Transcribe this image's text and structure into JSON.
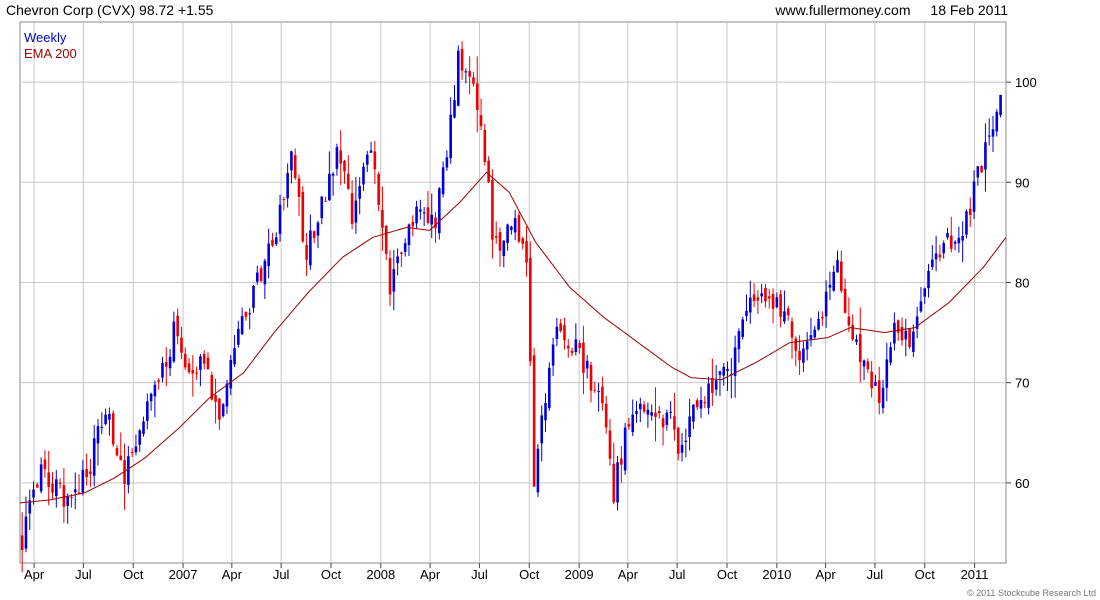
{
  "header": {
    "title": "Chevron Corp (CVX) 98.72 +1.55",
    "site": "www.fullermoney.com",
    "date": "18 Feb 2011"
  },
  "copyright": "© 2011 Stockcube Research Ltd",
  "colors": {
    "up": "#0000dd",
    "down": "#ee0000",
    "ema": "#990000",
    "grid": "#c8c8c8",
    "legend_weekly": "#0000cc",
    "legend_ema": "#990000"
  },
  "chart_data": {
    "type": "candlestick",
    "legend": [
      "Weekly",
      "EMA 200"
    ],
    "ylim": [
      52,
      106
    ],
    "y_ticks": [
      60,
      70,
      80,
      90,
      100
    ],
    "x_tick_labels": [
      "Apr",
      "Jul",
      "Oct",
      "2007",
      "Apr",
      "Jul",
      "Oct",
      "2008",
      "Apr",
      "Jul",
      "Oct",
      "2009",
      "Apr",
      "Jul",
      "Oct",
      "2010",
      "Apr",
      "Jul",
      "Oct",
      "2011"
    ],
    "x_range": [
      "2006-03-06",
      "2011-02-28"
    ],
    "x_ticks": [
      "2006-04-01",
      "2006-07-01",
      "2006-10-01",
      "2007-01-01",
      "2007-04-01",
      "2007-07-01",
      "2007-10-01",
      "2008-01-01",
      "2008-04-01",
      "2008-07-01",
      "2008-10-01",
      "2009-01-01",
      "2009-04-01",
      "2009-07-01",
      "2009-10-01",
      "2010-01-01",
      "2010-04-01",
      "2010-07-01",
      "2010-10-01",
      "2011-01-01"
    ],
    "close_anchors": [
      [
        "2006-03-10",
        54.5
      ],
      [
        "2006-04-14",
        61
      ],
      [
        "2006-06-02",
        58
      ],
      [
        "2006-07-14",
        62
      ],
      [
        "2006-08-11",
        67
      ],
      [
        "2006-09-15",
        61
      ],
      [
        "2006-10-13",
        66
      ],
      [
        "2006-11-17",
        70
      ],
      [
        "2006-12-15",
        75
      ],
      [
        "2007-01-12",
        71
      ],
      [
        "2007-02-09",
        72
      ],
      [
        "2007-03-09",
        67
      ],
      [
        "2007-04-13",
        75
      ],
      [
        "2007-05-18",
        80
      ],
      [
        "2007-06-15",
        84
      ],
      [
        "2007-07-20",
        92
      ],
      [
        "2007-08-17",
        83
      ],
      [
        "2007-09-14",
        88
      ],
      [
        "2007-10-12",
        93
      ],
      [
        "2007-11-09",
        87
      ],
      [
        "2007-12-14",
        93
      ],
      [
        "2008-01-18",
        80
      ],
      [
        "2008-02-08",
        84
      ],
      [
        "2008-03-07",
        87
      ],
      [
        "2008-04-11",
        86
      ],
      [
        "2008-05-09",
        96
      ],
      [
        "2008-05-23",
        102
      ],
      [
        "2008-06-20",
        99
      ],
      [
        "2008-07-11",
        93
      ],
      [
        "2008-07-25",
        85
      ],
      [
        "2008-08-15",
        84
      ],
      [
        "2008-09-05",
        86
      ],
      [
        "2008-09-26",
        82
      ],
      [
        "2008-10-10",
        60
      ],
      [
        "2008-10-24",
        66
      ],
      [
        "2008-11-21",
        75
      ],
      [
        "2008-12-19",
        74
      ],
      [
        "2009-01-16",
        71
      ],
      [
        "2009-02-13",
        68
      ],
      [
        "2009-03-06",
        59
      ],
      [
        "2009-03-27",
        65
      ],
      [
        "2009-04-24",
        68
      ],
      [
        "2009-05-22",
        67
      ],
      [
        "2009-06-19",
        66
      ],
      [
        "2009-07-10",
        63
      ],
      [
        "2009-08-07",
        68
      ],
      [
        "2009-09-04",
        70
      ],
      [
        "2009-10-09",
        72
      ],
      [
        "2009-11-13",
        78
      ],
      [
        "2009-12-11",
        78
      ],
      [
        "2010-01-15",
        77
      ],
      [
        "2010-02-12",
        72
      ],
      [
        "2010-03-19",
        76
      ],
      [
        "2010-04-23",
        82
      ],
      [
        "2010-05-14",
        75
      ],
      [
        "2010-06-11",
        72
      ],
      [
        "2010-07-09",
        68
      ],
      [
        "2010-08-06",
        76
      ],
      [
        "2010-09-10",
        74
      ],
      [
        "2010-10-08",
        81
      ],
      [
        "2010-11-12",
        84
      ],
      [
        "2010-12-10",
        85
      ],
      [
        "2011-01-14",
        92
      ],
      [
        "2011-02-04",
        95
      ],
      [
        "2011-02-18",
        98.72
      ]
    ],
    "ema_anchors": [
      [
        "2006-03-06",
        58
      ],
      [
        "2006-05-01",
        58.3
      ],
      [
        "2006-07-03",
        59
      ],
      [
        "2006-08-28",
        60.5
      ],
      [
        "2006-10-23",
        62.5
      ],
      [
        "2006-12-25",
        65.5
      ],
      [
        "2007-02-19",
        68.5
      ],
      [
        "2007-04-23",
        71
      ],
      [
        "2007-06-18",
        75
      ],
      [
        "2007-08-20",
        79
      ],
      [
        "2007-10-22",
        82.5
      ],
      [
        "2007-12-17",
        84.5
      ],
      [
        "2008-02-18",
        85.5
      ],
      [
        "2008-03-31",
        85.2
      ],
      [
        "2008-05-26",
        88
      ],
      [
        "2008-07-14",
        91
      ],
      [
        "2008-08-25",
        89
      ],
      [
        "2008-10-13",
        84
      ],
      [
        "2008-12-15",
        79.5
      ],
      [
        "2009-02-16",
        76.5
      ],
      [
        "2009-04-20",
        74
      ],
      [
        "2009-06-22",
        71.5
      ],
      [
        "2009-07-27",
        70.5
      ],
      [
        "2009-09-21",
        70.3
      ],
      [
        "2009-11-23",
        72
      ],
      [
        "2010-01-25",
        74
      ],
      [
        "2010-04-05",
        74.5
      ],
      [
        "2010-05-17",
        75.5
      ],
      [
        "2010-07-19",
        75
      ],
      [
        "2010-09-13",
        75.5
      ],
      [
        "2010-11-15",
        78
      ],
      [
        "2011-01-17",
        81.5
      ],
      [
        "2011-02-28",
        84.5
      ]
    ]
  }
}
